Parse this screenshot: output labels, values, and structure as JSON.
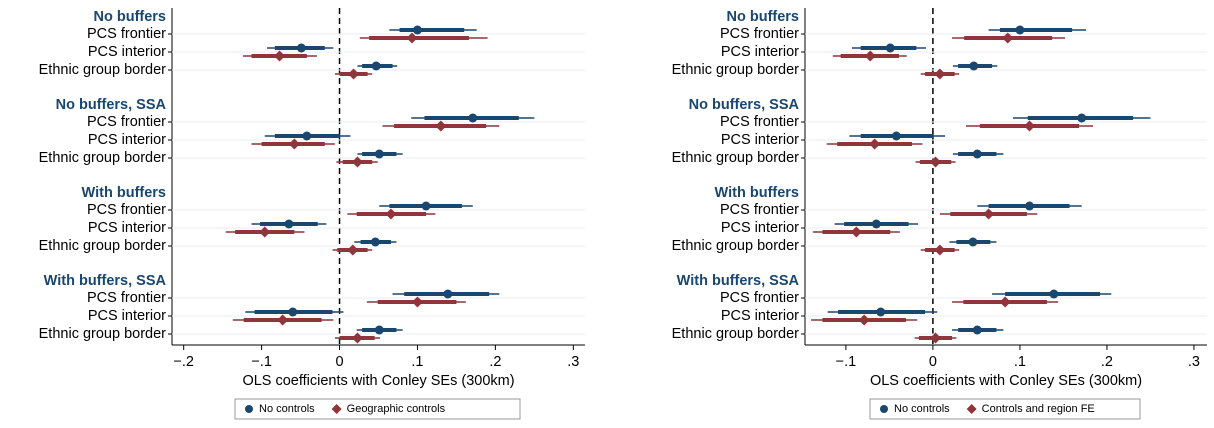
{
  "chart_data": [
    {
      "type": "coefplot",
      "xlabel": "OLS coefficients with Conley SEs (300km)",
      "groups": [
        "No buffers",
        "No buffers, SSA",
        "With buffers",
        "With buffers, SSA"
      ],
      "categories": [
        "PCS frontier",
        "PCS interior",
        "Ethnic group border"
      ],
      "xlim": [
        -0.215,
        0.315
      ],
      "xticks": [
        {
          "value": -0.2,
          "label": "−.2"
        },
        {
          "value": -0.1,
          "label": "−.1"
        },
        0,
        {
          "value": 0.1,
          "label": ".1"
        },
        {
          "value": 0.2,
          "label": ".2"
        },
        {
          "value": 0.3,
          "label": ".3"
        }
      ],
      "series": [
        {
          "name": "No controls",
          "color": "#1a476f",
          "marker": "circle",
          "values": [
            [
              0.1,
              -0.049,
              0.047
            ],
            [
              0.171,
              -0.042,
              0.051
            ],
            [
              0.111,
              -0.065,
              0.046
            ],
            [
              0.139,
              -0.06,
              0.051
            ]
          ],
          "ci95": [
            [
              [
                0.064,
                0.176
              ],
              [
                -0.093,
                -0.008
              ],
              [
                0.023,
                0.074
              ]
            ],
            [
              [
                0.092,
                0.25
              ],
              [
                -0.096,
                0.014
              ],
              [
                0.023,
                0.081
              ]
            ],
            [
              [
                0.051,
                0.171
              ],
              [
                -0.113,
                -0.017
              ],
              [
                0.019,
                0.073
              ]
            ],
            [
              [
                0.068,
                0.205
              ],
              [
                -0.121,
                0.005
              ],
              [
                0.022,
                0.081
              ]
            ]
          ],
          "ci90": [
            [
              [
                0.077,
                0.16
              ],
              [
                -0.083,
                -0.019
              ],
              [
                0.029,
                0.068
              ]
            ],
            [
              [
                0.109,
                0.23
              ],
              [
                -0.083,
                0.001
              ],
              [
                0.029,
                0.073
              ]
            ],
            [
              [
                0.064,
                0.157
              ],
              [
                -0.102,
                -0.028
              ],
              [
                0.027,
                0.066
              ]
            ],
            [
              [
                0.083,
                0.192
              ],
              [
                -0.109,
                -0.009
              ],
              [
                0.029,
                0.073
              ]
            ]
          ]
        },
        {
          "name": "Geographic controls",
          "color": "#90353b",
          "marker": "diamond",
          "values": [
            [
              0.093,
              -0.077,
              0.018
            ],
            [
              0.13,
              -0.058,
              0.023
            ],
            [
              0.066,
              -0.096,
              0.017
            ],
            [
              0.1,
              -0.073,
              0.023
            ]
          ],
          "ci95": [
            [
              [
                0.026,
                0.19
              ],
              [
                -0.124,
                -0.029
              ],
              [
                -0.006,
                0.042
              ]
            ],
            [
              [
                0.055,
                0.205
              ],
              [
                -0.113,
                -0.006
              ],
              [
                -0.004,
                0.049
              ]
            ],
            [
              [
                0.01,
                0.123
              ],
              [
                -0.146,
                -0.045
              ],
              [
                -0.009,
                0.042
              ]
            ],
            [
              [
                0.035,
                0.162
              ],
              [
                -0.137,
                -0.008
              ],
              [
                -0.006,
                0.052
              ]
            ]
          ],
          "ci90": [
            [
              [
                0.038,
                0.166
              ],
              [
                -0.113,
                -0.042
              ],
              [
                0.0,
                0.036
              ]
            ],
            [
              [
                0.07,
                0.188
              ],
              [
                -0.1,
                -0.019
              ],
              [
                0.004,
                0.042
              ]
            ],
            [
              [
                0.022,
                0.111
              ],
              [
                -0.134,
                -0.058
              ],
              [
                -0.003,
                0.036
              ]
            ],
            [
              [
                0.049,
                0.15
              ],
              [
                -0.123,
                -0.023
              ],
              [
                0.0,
                0.045
              ]
            ]
          ]
        }
      ]
    },
    {
      "type": "coefplot",
      "xlabel": "OLS coefficients with Conley SEs (300km)",
      "groups": [
        "No buffers",
        "No buffers, SSA",
        "With buffers",
        "With buffers, SSA"
      ],
      "categories": [
        "PCS frontier",
        "PCS interior",
        "Ethnic group border"
      ],
      "xlim": [
        -0.147,
        0.315
      ],
      "xticks": [
        {
          "value": -0.1,
          "label": "−.1"
        },
        0,
        {
          "value": 0.1,
          "label": ".1"
        },
        {
          "value": 0.2,
          "label": ".2"
        },
        {
          "value": 0.3,
          "label": ".3"
        }
      ],
      "series": [
        {
          "name": "No controls",
          "color": "#1a476f",
          "marker": "circle",
          "values": [
            [
              0.1,
              -0.049,
              0.047
            ],
            [
              0.171,
              -0.042,
              0.051
            ],
            [
              0.111,
              -0.065,
              0.046
            ],
            [
              0.139,
              -0.06,
              0.051
            ]
          ],
          "ci95": [
            [
              [
                0.064,
                0.176
              ],
              [
                -0.093,
                -0.008
              ],
              [
                0.023,
                0.074
              ]
            ],
            [
              [
                0.092,
                0.25
              ],
              [
                -0.096,
                0.014
              ],
              [
                0.023,
                0.081
              ]
            ],
            [
              [
                0.051,
                0.171
              ],
              [
                -0.113,
                -0.017
              ],
              [
                0.019,
                0.073
              ]
            ],
            [
              [
                0.068,
                0.205
              ],
              [
                -0.121,
                0.005
              ],
              [
                0.022,
                0.081
              ]
            ]
          ],
          "ci90": [
            [
              [
                0.077,
                0.16
              ],
              [
                -0.083,
                -0.019
              ],
              [
                0.029,
                0.068
              ]
            ],
            [
              [
                0.109,
                0.23
              ],
              [
                -0.083,
                0.001
              ],
              [
                0.029,
                0.073
              ]
            ],
            [
              [
                0.064,
                0.157
              ],
              [
                -0.102,
                -0.028
              ],
              [
                0.027,
                0.066
              ]
            ],
            [
              [
                0.083,
                0.192
              ],
              [
                -0.109,
                -0.009
              ],
              [
                0.029,
                0.073
              ]
            ]
          ]
        },
        {
          "name": "Controls and region FE",
          "color": "#90353b",
          "marker": "diamond",
          "values": [
            [
              0.086,
              -0.072,
              0.008
            ],
            [
              0.111,
              -0.067,
              0.003
            ],
            [
              0.064,
              -0.088,
              0.008
            ],
            [
              0.083,
              -0.079,
              0.003
            ]
          ],
          "ci95": [
            [
              [
                0.022,
                0.152
              ],
              [
                -0.115,
                -0.03
              ],
              [
                -0.014,
                0.03
              ]
            ],
            [
              [
                0.038,
                0.184
              ],
              [
                -0.122,
                -0.012
              ],
              [
                -0.02,
                0.026
              ]
            ],
            [
              [
                0.008,
                0.12
              ],
              [
                -0.138,
                -0.038
              ],
              [
                -0.014,
                0.03
              ]
            ],
            [
              [
                0.022,
                0.144
              ],
              [
                -0.14,
                -0.018
              ],
              [
                -0.021,
                0.027
              ]
            ]
          ],
          "ci90": [
            [
              [
                0.036,
                0.137
              ],
              [
                -0.106,
                -0.039
              ],
              [
                -0.009,
                0.025
              ]
            ],
            [
              [
                0.054,
                0.168
              ],
              [
                -0.11,
                -0.024
              ],
              [
                -0.015,
                0.021
              ]
            ],
            [
              [
                0.02,
                0.108
              ],
              [
                -0.127,
                -0.049
              ],
              [
                -0.009,
                0.025
              ]
            ],
            [
              [
                0.035,
                0.131
              ],
              [
                -0.127,
                -0.031
              ],
              [
                -0.016,
                0.022
              ]
            ]
          ]
        }
      ]
    }
  ]
}
